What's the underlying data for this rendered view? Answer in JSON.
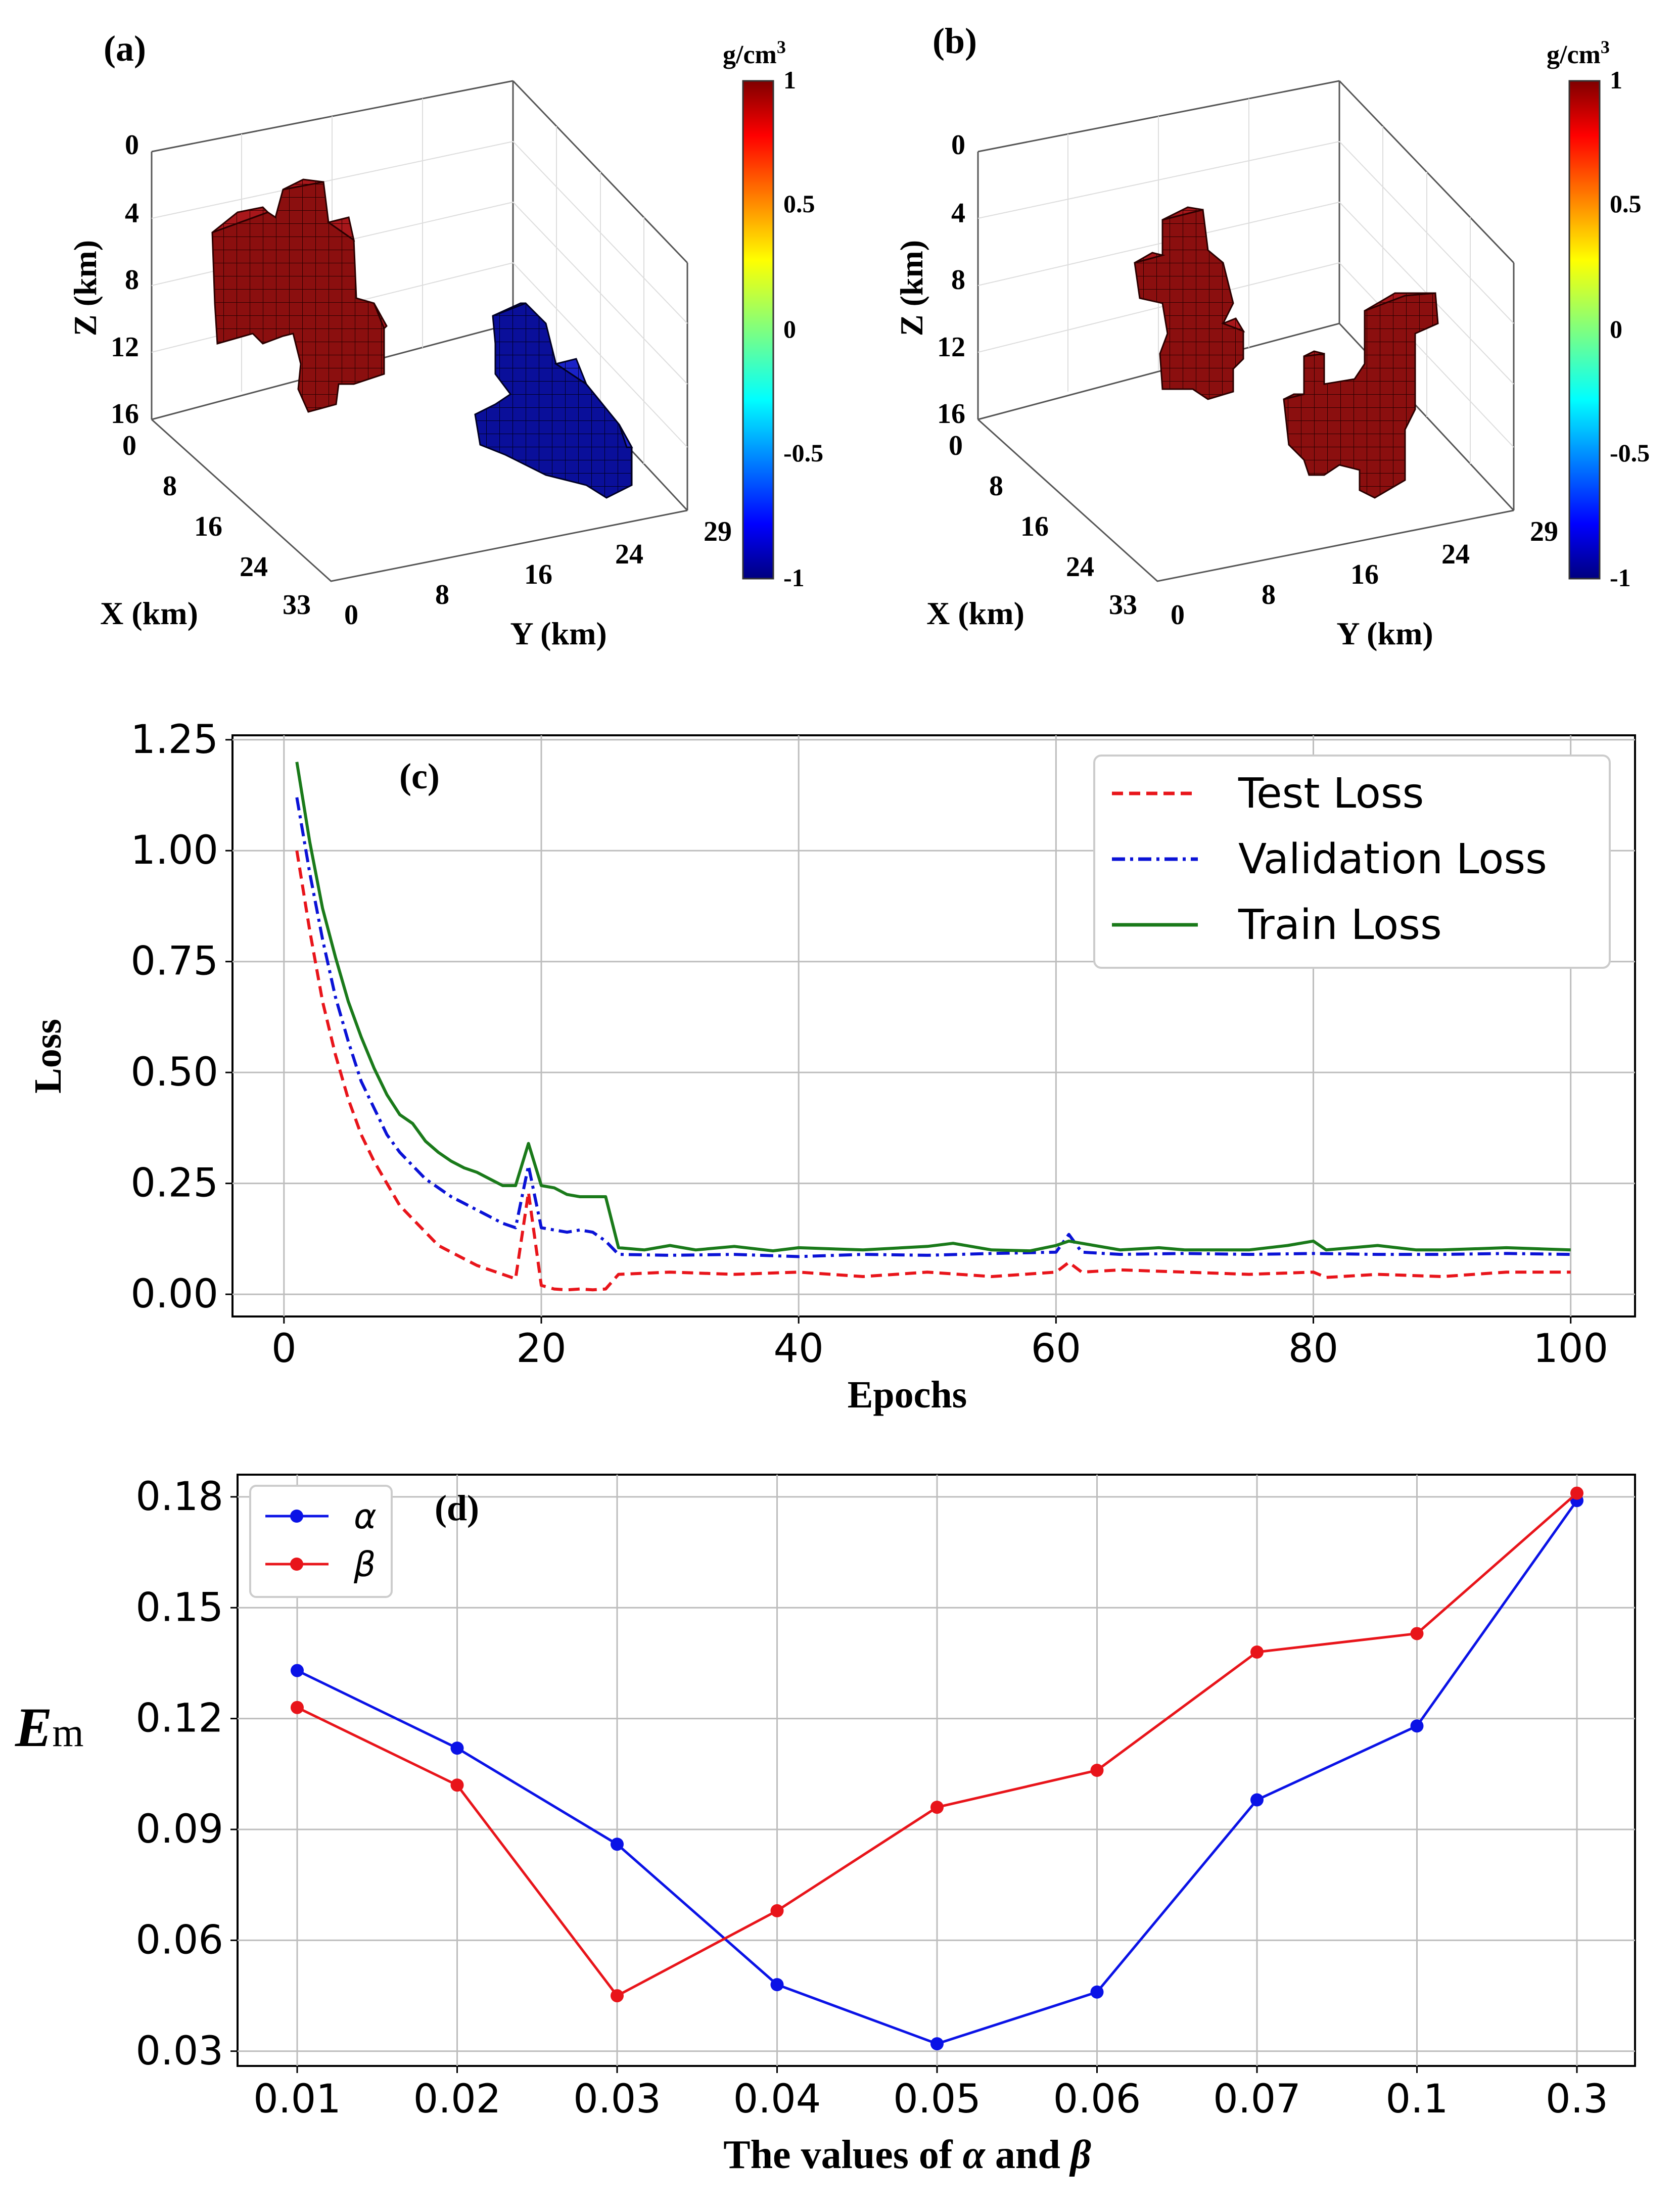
{
  "panels": {
    "a": {
      "label": "(a)",
      "axes": {
        "x_label": "X (km)",
        "y_label": "Y (km)",
        "z_label": "Z (km)",
        "x_ticks": [
          "0",
          "8",
          "16",
          "24",
          "33"
        ],
        "y_ticks": [
          "0",
          "8",
          "16",
          "24",
          "29"
        ],
        "z_ticks": [
          "0",
          "4",
          "8",
          "12",
          "16"
        ]
      },
      "colorbar": {
        "unit": "g/cm",
        "unit_sup": "3",
        "ticks": [
          "1",
          "0.5",
          "0",
          "-0.5",
          "-1"
        ],
        "range": [
          -1,
          1
        ]
      },
      "bodies": [
        {
          "name": "positive-body-1",
          "density": 1,
          "color": "#8b0f0f"
        },
        {
          "name": "negative-body-1",
          "density": -1,
          "color": "#0a0f9a"
        }
      ]
    },
    "b": {
      "label": "(b)",
      "axes": {
        "x_label": "X (km)",
        "y_label": "Y (km)",
        "z_label": "Z (km)",
        "x_ticks": [
          "0",
          "8",
          "16",
          "24",
          "33"
        ],
        "y_ticks": [
          "0",
          "8",
          "16",
          "24",
          "29"
        ],
        "z_ticks": [
          "0",
          "4",
          "8",
          "12",
          "16"
        ]
      },
      "colorbar": {
        "unit": "g/cm",
        "unit_sup": "3",
        "ticks": [
          "1",
          "0.5",
          "0",
          "-0.5",
          "-1"
        ],
        "range": [
          -1,
          1
        ]
      },
      "bodies": [
        {
          "name": "positive-body-1",
          "density": 1,
          "color": "#8b0f0f"
        },
        {
          "name": "positive-body-2",
          "density": 1,
          "color": "#8b0f0f"
        }
      ]
    },
    "c": {
      "label": "(c)"
    },
    "d": {
      "label": "(d)"
    }
  },
  "chart_data": [
    {
      "id": "c",
      "type": "line",
      "xlabel": "Epochs",
      "ylabel": "Loss",
      "xlim": [
        -4,
        105
      ],
      "ylim": [
        -0.05,
        1.26
      ],
      "x_ticks": [
        0,
        20,
        40,
        60,
        80,
        100
      ],
      "x_tick_labels": [
        "0",
        "20",
        "40",
        "60",
        "80",
        "100"
      ],
      "y_ticks": [
        0,
        0.25,
        0.5,
        0.75,
        1.0,
        1.25
      ],
      "y_tick_labels": [
        "0.00",
        "0.25",
        "0.50",
        "0.75",
        "1.00",
        "1.25"
      ],
      "grid": true,
      "legend_position": "top-right",
      "series": [
        {
          "name": "Test Loss",
          "color": "#e8141a",
          "style": "dashed",
          "points": [
            [
              1,
              1.0
            ],
            [
              2,
              0.82
            ],
            [
              3,
              0.66
            ],
            [
              4,
              0.54
            ],
            [
              5,
              0.44
            ],
            [
              6,
              0.36
            ],
            [
              7,
              0.3
            ],
            [
              8,
              0.25
            ],
            [
              9,
              0.2
            ],
            [
              10,
              0.17
            ],
            [
              11,
              0.14
            ],
            [
              12,
              0.11
            ],
            [
              13,
              0.095
            ],
            [
              14,
              0.08
            ],
            [
              15,
              0.065
            ],
            [
              16,
              0.055
            ],
            [
              17,
              0.045
            ],
            [
              18,
              0.035
            ],
            [
              19,
              0.23
            ],
            [
              20,
              0.02
            ],
            [
              21,
              0.012
            ],
            [
              22,
              0.01
            ],
            [
              23,
              0.012
            ],
            [
              24,
              0.01
            ],
            [
              25,
              0.012
            ],
            [
              26,
              0.045
            ],
            [
              30,
              0.05
            ],
            [
              35,
              0.045
            ],
            [
              40,
              0.05
            ],
            [
              45,
              0.04
            ],
            [
              50,
              0.05
            ],
            [
              55,
              0.04
            ],
            [
              60,
              0.05
            ],
            [
              61,
              0.072
            ],
            [
              62,
              0.05
            ],
            [
              65,
              0.055
            ],
            [
              70,
              0.05
            ],
            [
              75,
              0.045
            ],
            [
              80,
              0.05
            ],
            [
              81,
              0.038
            ],
            [
              85,
              0.045
            ],
            [
              90,
              0.04
            ],
            [
              95,
              0.05
            ],
            [
              100,
              0.05
            ]
          ]
        },
        {
          "name": "Validation Loss",
          "color": "#0a12d6",
          "style": "dashdot",
          "points": [
            [
              1,
              1.12
            ],
            [
              2,
              0.95
            ],
            [
              3,
              0.8
            ],
            [
              4,
              0.67
            ],
            [
              5,
              0.57
            ],
            [
              6,
              0.48
            ],
            [
              7,
              0.42
            ],
            [
              8,
              0.36
            ],
            [
              9,
              0.32
            ],
            [
              10,
              0.29
            ],
            [
              11,
              0.26
            ],
            [
              12,
              0.24
            ],
            [
              13,
              0.22
            ],
            [
              14,
              0.205
            ],
            [
              15,
              0.19
            ],
            [
              16,
              0.175
            ],
            [
              17,
              0.16
            ],
            [
              18,
              0.15
            ],
            [
              19,
              0.29
            ],
            [
              20,
              0.15
            ],
            [
              21,
              0.145
            ],
            [
              22,
              0.14
            ],
            [
              23,
              0.145
            ],
            [
              24,
              0.14
            ],
            [
              25,
              0.12
            ],
            [
              26,
              0.09
            ],
            [
              30,
              0.088
            ],
            [
              35,
              0.09
            ],
            [
              40,
              0.085
            ],
            [
              45,
              0.09
            ],
            [
              50,
              0.088
            ],
            [
              55,
              0.092
            ],
            [
              60,
              0.095
            ],
            [
              61,
              0.135
            ],
            [
              62,
              0.095
            ],
            [
              65,
              0.09
            ],
            [
              70,
              0.092
            ],
            [
              75,
              0.09
            ],
            [
              80,
              0.092
            ],
            [
              85,
              0.09
            ],
            [
              90,
              0.09
            ],
            [
              95,
              0.092
            ],
            [
              100,
              0.09
            ]
          ]
        },
        {
          "name": "Train Loss",
          "color": "#1a7a1a",
          "style": "solid",
          "points": [
            [
              1,
              1.2
            ],
            [
              2,
              1.02
            ],
            [
              3,
              0.87
            ],
            [
              4,
              0.76
            ],
            [
              5,
              0.66
            ],
            [
              6,
              0.58
            ],
            [
              7,
              0.51
            ],
            [
              8,
              0.45
            ],
            [
              9,
              0.405
            ],
            [
              10,
              0.385
            ],
            [
              11,
              0.345
            ],
            [
              12,
              0.32
            ],
            [
              13,
              0.3
            ],
            [
              14,
              0.285
            ],
            [
              15,
              0.275
            ],
            [
              16,
              0.26
            ],
            [
              17,
              0.245
            ],
            [
              18,
              0.245
            ],
            [
              19,
              0.34
            ],
            [
              20,
              0.245
            ],
            [
              21,
              0.24
            ],
            [
              22,
              0.225
            ],
            [
              23,
              0.22
            ],
            [
              24,
              0.22
            ],
            [
              25,
              0.22
            ],
            [
              26,
              0.105
            ],
            [
              28,
              0.1
            ],
            [
              30,
              0.11
            ],
            [
              32,
              0.1
            ],
            [
              35,
              0.108
            ],
            [
              38,
              0.098
            ],
            [
              40,
              0.105
            ],
            [
              45,
              0.1
            ],
            [
              50,
              0.108
            ],
            [
              52,
              0.115
            ],
            [
              55,
              0.1
            ],
            [
              58,
              0.098
            ],
            [
              60,
              0.11
            ],
            [
              61,
              0.12
            ],
            [
              62,
              0.115
            ],
            [
              65,
              0.1
            ],
            [
              68,
              0.105
            ],
            [
              70,
              0.1
            ],
            [
              72,
              0.1
            ],
            [
              75,
              0.1
            ],
            [
              78,
              0.11
            ],
            [
              80,
              0.12
            ],
            [
              81,
              0.1
            ],
            [
              85,
              0.11
            ],
            [
              88,
              0.1
            ],
            [
              90,
              0.1
            ],
            [
              95,
              0.105
            ],
            [
              100,
              0.1
            ]
          ]
        }
      ]
    },
    {
      "id": "d",
      "type": "line",
      "xlabel_prefix": "The values of ",
      "xlabel_alpha": "α",
      "xlabel_mid": " and ",
      "xlabel_beta": "β",
      "ylabel_main": "E",
      "ylabel_sub": "m",
      "categories": [
        "0.01",
        "0.02",
        "0.03",
        "0.04",
        "0.05",
        "0.06",
        "0.07",
        "0.1",
        "0.3"
      ],
      "ylim": [
        0.026,
        0.186
      ],
      "y_ticks": [
        0.03,
        0.06,
        0.09,
        0.12,
        0.15,
        0.18
      ],
      "y_tick_labels": [
        "0.03",
        "0.06",
        "0.09",
        "0.12",
        "0.15",
        "0.18"
      ],
      "grid": true,
      "legend_position": "top-left",
      "series": [
        {
          "name": "α",
          "color": "#0a12e6",
          "values": [
            0.133,
            0.112,
            0.086,
            0.048,
            0.032,
            0.046,
            0.098,
            0.118,
            0.179
          ]
        },
        {
          "name": "β",
          "color": "#e8141a",
          "values": [
            0.123,
            0.102,
            0.045,
            0.068,
            0.096,
            0.106,
            0.138,
            0.143,
            0.181
          ]
        }
      ]
    }
  ]
}
